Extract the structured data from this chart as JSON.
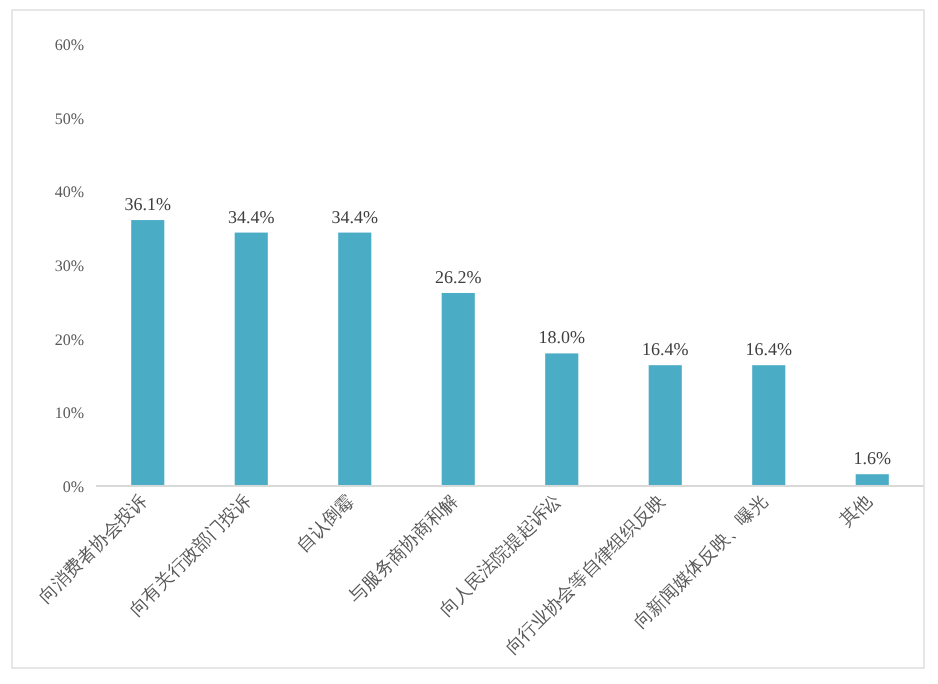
{
  "chart_data": {
    "type": "bar",
    "categories": [
      "向消费者协会投诉",
      "向有关行政部门投诉",
      "自认倒霉",
      "与服务商协商和解",
      "向人民法院提起诉讼",
      "向行业协会等自律组织反映",
      "向新闻媒体反映、曝光",
      "其他"
    ],
    "values": [
      36.1,
      34.4,
      34.4,
      26.2,
      18.0,
      16.4,
      16.4,
      1.6
    ],
    "value_labels": [
      "36.1%",
      "34.4%",
      "34.4%",
      "26.2%",
      "18.0%",
      "16.4%",
      "16.4%",
      "1.6%"
    ],
    "color": "#4bacc6",
    "ylim": [
      0,
      60
    ],
    "yticks": [
      {
        "value": 0,
        "label": "0%"
      },
      {
        "value": 10,
        "label": "10%"
      },
      {
        "value": 20,
        "label": "20%"
      },
      {
        "value": 30,
        "label": "30%"
      },
      {
        "value": 40,
        "label": "40%"
      },
      {
        "value": 50,
        "label": "50%"
      },
      {
        "value": 60,
        "label": "60%"
      }
    ],
    "grid": false
  }
}
